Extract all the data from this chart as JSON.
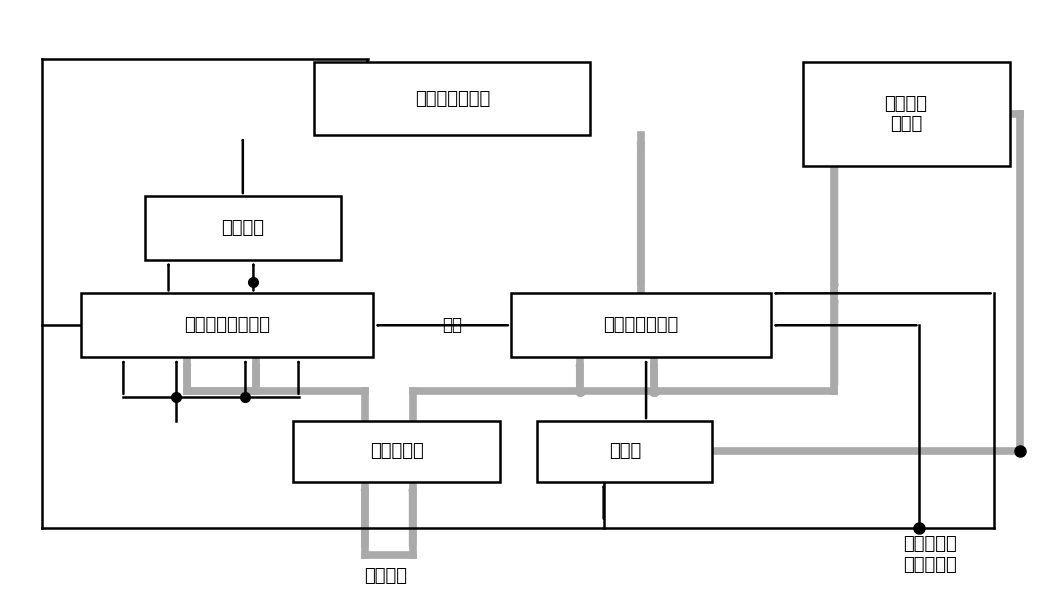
{
  "bg": "#ffffff",
  "black": "#000000",
  "gray": "#aaaaaa",
  "boxes": {
    "result_lamp": [
      0.295,
      0.78,
      0.26,
      0.12
    ],
    "overflow_lamp": [
      0.755,
      0.73,
      0.195,
      0.17
    ],
    "overflow_judge": [
      0.135,
      0.575,
      0.185,
      0.105
    ],
    "sign_adder": [
      0.075,
      0.415,
      0.275,
      0.105
    ],
    "data_adder": [
      0.48,
      0.415,
      0.245,
      0.105
    ],
    "inv_ctrl": [
      0.275,
      0.21,
      0.195,
      0.1
    ],
    "accumulator": [
      0.505,
      0.21,
      0.165,
      0.1
    ]
  },
  "box_labels": {
    "result_lamp": "运算结果指示灯",
    "overflow_lamp": "溢出判断\n指示灯",
    "overflow_judge": "溢出判断",
    "sign_adder": "加法器（符号位）",
    "data_adder": "加法器（数据）",
    "inv_ctrl": "原反控制器",
    "accumulator": "累加器"
  }
}
